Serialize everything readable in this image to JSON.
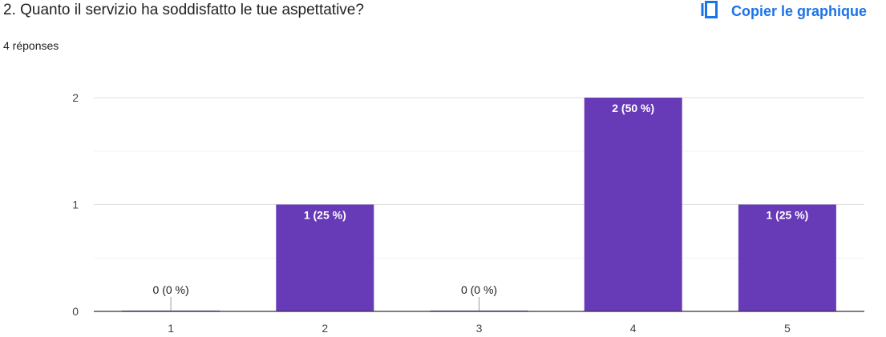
{
  "question": {
    "title": "2. Quanto il servizio ha soddisfatto le tue aspettative?",
    "response_count": "4 réponses"
  },
  "toolbar": {
    "copy_label": "Copier le graphique",
    "copy_icon": "copy-icon"
  },
  "colors": {
    "bar": "#673ab7",
    "accent": "#1a73e8"
  },
  "chart_data": {
    "type": "bar",
    "categories": [
      "1",
      "2",
      "3",
      "4",
      "5"
    ],
    "values": [
      0,
      1,
      0,
      2,
      1
    ],
    "data_labels": [
      "0 (0 %)",
      "1 (25 %)",
      "0 (0 %)",
      "2 (50 %)",
      "1 (25 %)"
    ],
    "y_ticks": [
      0,
      1,
      2
    ],
    "ylim": [
      0,
      2
    ],
    "grid": true,
    "legend": "none",
    "title": "",
    "xlabel": "",
    "ylabel": ""
  }
}
